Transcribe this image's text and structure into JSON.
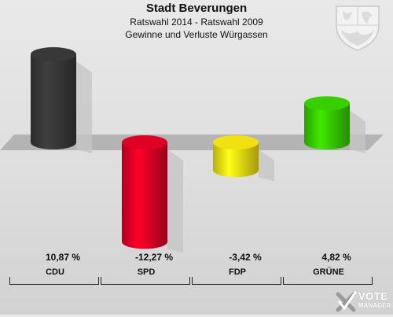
{
  "title": "Stadt Beverungen",
  "subtitle1": "Ratswahl 2014 - Ratswahl 2009",
  "subtitle2": "Gewinne und Verluste Würgassen",
  "chart_data": {
    "type": "bar",
    "categories": [
      "CDU",
      "SPD",
      "FDP",
      "GRÜNE"
    ],
    "values": [
      10.87,
      -12.27,
      -3.42,
      4.82
    ],
    "value_labels": [
      "10,87 %",
      "-12,27 %",
      "-3,42 %",
      "4,82 %"
    ],
    "colors": [
      "#333333",
      "#cc0022",
      "#ddcc11",
      "#33bb00"
    ],
    "ylim": [
      -14,
      12
    ],
    "grid": false,
    "legend": "none"
  },
  "logo": {
    "line1": "VOTE",
    "line2": "MANAGER"
  }
}
